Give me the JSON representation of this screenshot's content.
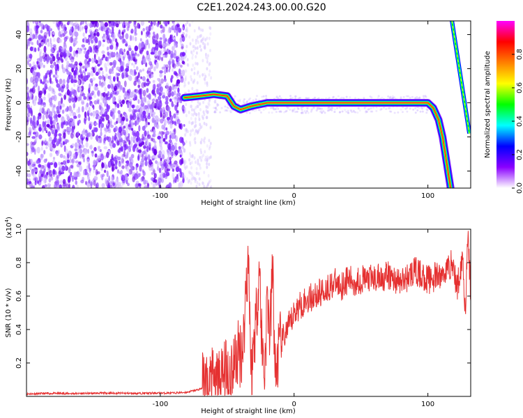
{
  "title": "C2E1.2024.243.00.00.G20",
  "colors": {
    "snr_line": "#e53030",
    "frame": "#000000",
    "background": "#ffffff"
  },
  "chart_data": [
    {
      "type": "heatmap",
      "xlabel": "Height of straight line (km)",
      "ylabel": "Frequency (Hz)",
      "xlim": [
        -200,
        132
      ],
      "ylim": [
        -50,
        48
      ],
      "x_ticks": [
        {
          "value": -100,
          "label": "-100"
        },
        {
          "value": 0,
          "label": "0"
        },
        {
          "value": 100,
          "label": "100"
        }
      ],
      "y_ticks": [
        {
          "value": -40,
          "label": "-40"
        },
        {
          "value": -20,
          "label": "-20"
        },
        {
          "value": 0,
          "label": "0"
        },
        {
          "value": 20,
          "label": "20"
        },
        {
          "value": 40,
          "label": "40"
        }
      ],
      "colorbar": {
        "label": "Normalized spectral amplitude",
        "range": [
          0,
          1
        ],
        "ticks": [
          {
            "value": 0.0,
            "label": "0.0"
          },
          {
            "value": 0.2,
            "label": "0.2"
          },
          {
            "value": 0.4,
            "label": "0.4"
          },
          {
            "value": 0.6,
            "label": "0.6"
          },
          {
            "value": 0.8,
            "label": "0.8"
          }
        ],
        "colors": [
          "#ffffff",
          "#8a00ff",
          "#0000ff",
          "#00ffff",
          "#00ff00",
          "#ffff00",
          "#ff8000",
          "#ff0000",
          "#ff00ff"
        ]
      },
      "ridge": [
        {
          "x": -82,
          "y": 3
        },
        {
          "x": -70,
          "y": 4
        },
        {
          "x": -60,
          "y": 5
        },
        {
          "x": -50,
          "y": 4
        },
        {
          "x": -45,
          "y": -2
        },
        {
          "x": -40,
          "y": -4
        },
        {
          "x": -32,
          "y": -2
        },
        {
          "x": -20,
          "y": 0
        },
        {
          "x": 0,
          "y": 0
        },
        {
          "x": 20,
          "y": 0
        },
        {
          "x": 50,
          "y": 0
        },
        {
          "x": 80,
          "y": 0
        },
        {
          "x": 100,
          "y": 0
        },
        {
          "x": 104,
          "y": -3
        },
        {
          "x": 108,
          "y": -10
        },
        {
          "x": 111,
          "y": -20
        },
        {
          "x": 114,
          "y": -35
        },
        {
          "x": 117,
          "y": -50
        }
      ],
      "alias_line": [
        {
          "x": 118,
          "y": 48
        },
        {
          "x": 131,
          "y": -18
        }
      ]
    },
    {
      "type": "line",
      "xlabel": "Height of straight line (km)",
      "ylabel": "SNR (10 * v/v)",
      "y_multiplier": "(x10",
      "y_multiplier_exp": "4",
      "y_multiplier_close": ")",
      "xlim": [
        -200,
        132
      ],
      "ylim": [
        0,
        1.0
      ],
      "x_ticks": [
        {
          "value": -100,
          "label": "-100"
        },
        {
          "value": 0,
          "label": "0"
        },
        {
          "value": 100,
          "label": "100"
        }
      ],
      "y_ticks": [
        {
          "value": 0.2,
          "label": "0.2"
        },
        {
          "value": 0.4,
          "label": "0.4"
        },
        {
          "value": 0.6,
          "label": "0.6"
        },
        {
          "value": 0.8,
          "label": "0.8"
        },
        {
          "value": 1.0,
          "label": "1.0"
        }
      ],
      "series": [
        {
          "x": [
            -200,
            -180,
            -160,
            -140,
            -120,
            -100,
            -90,
            -80,
            -72,
            -65,
            -58,
            -52,
            -46,
            -42,
            -38,
            -36,
            -34,
            -32,
            -30,
            -28,
            -26,
            -24,
            -22,
            -20,
            -18,
            -16,
            -14,
            -12,
            -10,
            -8,
            -5,
            -2,
            0,
            5,
            10,
            15,
            20,
            25,
            30,
            35,
            40,
            45,
            50,
            60,
            70,
            80,
            90,
            100,
            110,
            118,
            122,
            126,
            128,
            130,
            132
          ],
          "y": [
            0.015,
            0.018,
            0.017,
            0.02,
            0.018,
            0.02,
            0.02,
            0.025,
            0.04,
            0.06,
            0.09,
            0.12,
            0.18,
            0.25,
            0.3,
            0.65,
            0.85,
            0.1,
            0.35,
            0.5,
            0.8,
            0.3,
            0.15,
            0.6,
            0.35,
            0.78,
            0.1,
            0.25,
            0.3,
            0.35,
            0.4,
            0.45,
            0.5,
            0.55,
            0.58,
            0.6,
            0.62,
            0.65,
            0.68,
            0.66,
            0.7,
            0.68,
            0.7,
            0.7,
            0.72,
            0.68,
            0.75,
            0.7,
            0.72,
            0.8,
            0.65,
            0.85,
            0.5,
            0.98,
            0.6
          ]
        }
      ]
    }
  ]
}
